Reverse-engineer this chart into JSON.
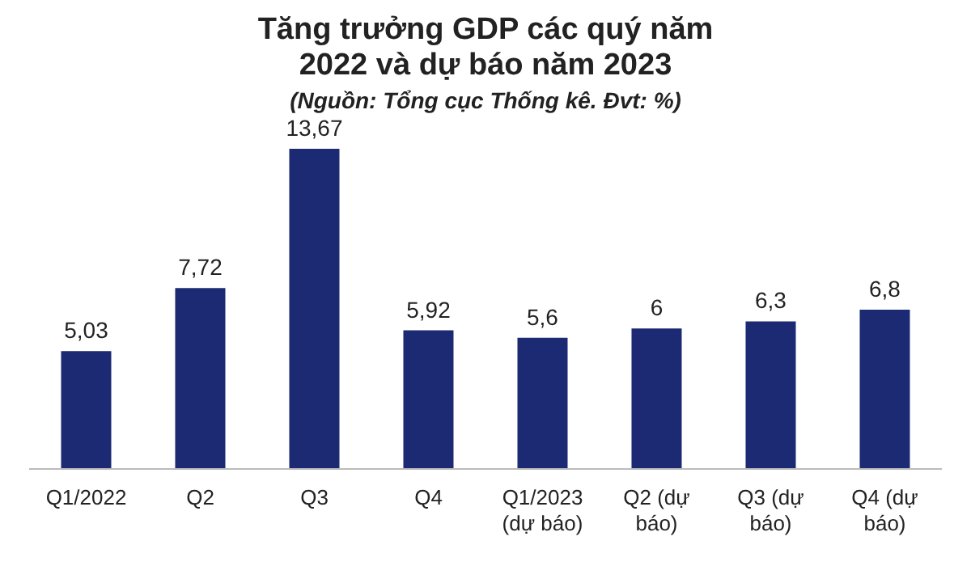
{
  "chart_data": {
    "type": "bar",
    "title": "Tăng trưởng GDP các quý năm 2022 và dự báo năm 2023",
    "subtitle": "(Nguồn: Tổng cục Thống kê. Đvt: %)",
    "categories": [
      "Q1/2022",
      "Q2",
      "Q3",
      "Q4",
      "Q1/2023 (dự báo)",
      "Q2 (dự báo)",
      "Q3 (dự báo)",
      "Q4 (dự báo)"
    ],
    "values": [
      5.03,
      7.72,
      13.67,
      5.92,
      5.6,
      6,
      6.3,
      6.8
    ],
    "value_labels": [
      "5,03",
      "7,72",
      "13,67",
      "5,92",
      "5,6",
      "6",
      "6,3",
      "6,8"
    ],
    "color": "#1b2a72",
    "grid": false,
    "legend": false
  }
}
